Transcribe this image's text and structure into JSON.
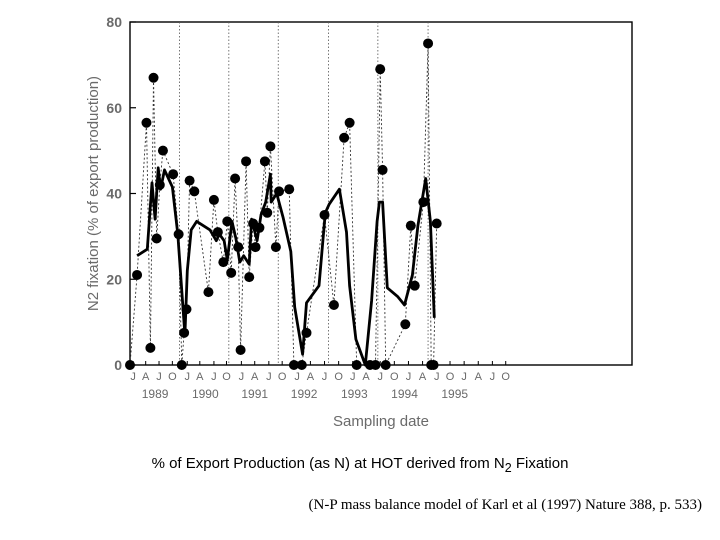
{
  "caption": {
    "prefix": "% of Export Production (as N) at HOT derived from N",
    "subscript": "2",
    "suffix": " Fixation"
  },
  "citation": "(N-P mass balance model of Karl et al (1997) Nature 388, p. 533)",
  "chart_data": {
    "type": "line",
    "ylabel": "N2 fixation (% of export production)",
    "xlabel": "Sampling date",
    "ylim": [
      0,
      80
    ],
    "yticks": [
      0,
      20,
      40,
      60,
      80
    ],
    "grid": false,
    "x_range": [
      1989.5,
      1995.9
    ],
    "month_letters": [
      "J",
      "A",
      "J",
      "O",
      "J",
      "A",
      "J",
      "O",
      "J",
      "A",
      "J",
      "O",
      "J",
      "A",
      "J",
      "O",
      "J",
      "A",
      "J",
      "O",
      "J",
      "A",
      "J",
      "O",
      "J",
      "A",
      "J",
      "O"
    ],
    "month_positions": [
      1989.54,
      1989.7,
      1989.87,
      1990.04,
      1990.23,
      1990.39,
      1990.57,
      1990.73,
      1990.92,
      1991.09,
      1991.27,
      1991.44,
      1991.63,
      1991.8,
      1991.98,
      1992.16,
      1992.34,
      1992.51,
      1992.69,
      1992.87,
      1993.05,
      1993.23,
      1993.41,
      1993.58,
      1993.76,
      1993.94,
      1994.12,
      1994.29
    ],
    "years": [
      {
        "label": "1989",
        "x": 1989.82
      },
      {
        "label": "1990",
        "x": 1990.46
      },
      {
        "label": "1991",
        "x": 1991.09
      },
      {
        "label": "1992",
        "x": 1991.72
      },
      {
        "label": "1993",
        "x": 1992.36
      },
      {
        "label": "1994",
        "x": 1993.0
      },
      {
        "label": "1995",
        "x": 1993.64
      }
    ],
    "year_dividers": [
      1990.13,
      1990.76,
      1991.39,
      1992.03,
      1992.66,
      1993.3
    ],
    "series": [
      {
        "style": "points-dashed",
        "points": [
          [
            1989.5,
            0
          ],
          [
            1989.59,
            21
          ],
          [
            1989.71,
            56.5
          ],
          [
            1989.76,
            4
          ],
          [
            1989.8,
            67
          ],
          [
            1989.84,
            29.5
          ],
          [
            1989.88,
            42
          ],
          [
            1989.92,
            50
          ],
          [
            1990.05,
            44.5
          ],
          [
            1990.12,
            30.5
          ],
          [
            1990.16,
            0
          ],
          [
            1990.19,
            7.5
          ],
          [
            1990.22,
            13
          ],
          [
            1990.26,
            43
          ],
          [
            1990.32,
            40.5
          ],
          [
            1990.5,
            17
          ],
          [
            1990.57,
            38.5
          ],
          [
            1990.62,
            31
          ],
          [
            1990.69,
            24
          ],
          [
            1990.74,
            33.5
          ],
          [
            1990.79,
            21.5
          ],
          [
            1990.84,
            43.5
          ],
          [
            1990.88,
            27.5
          ],
          [
            1990.91,
            3.5
          ],
          [
            1990.98,
            47.5
          ],
          [
            1991.02,
            20.5
          ],
          [
            1991.07,
            33
          ],
          [
            1991.1,
            27.5
          ],
          [
            1991.15,
            32
          ],
          [
            1991.22,
            47.5
          ],
          [
            1991.25,
            35.5
          ],
          [
            1991.29,
            51
          ],
          [
            1991.36,
            27.5
          ],
          [
            1991.4,
            40.5
          ],
          [
            1991.53,
            41
          ],
          [
            1991.59,
            0
          ],
          [
            1991.69,
            0
          ],
          [
            1991.75,
            7.5
          ],
          [
            1991.98,
            35
          ],
          [
            1992.1,
            14
          ],
          [
            1992.23,
            53
          ],
          [
            1992.3,
            56.5
          ],
          [
            1992.39,
            0
          ],
          [
            1992.56,
            0
          ],
          [
            1992.63,
            0
          ],
          [
            1992.69,
            69
          ],
          [
            1992.72,
            45.5
          ],
          [
            1992.76,
            0
          ],
          [
            1993.01,
            9.5
          ],
          [
            1993.08,
            32.5
          ],
          [
            1993.13,
            18.5
          ],
          [
            1993.24,
            38
          ],
          [
            1993.3,
            75
          ],
          [
            1993.34,
            0
          ],
          [
            1993.37,
            0
          ],
          [
            1993.41,
            33
          ]
        ]
      },
      {
        "style": "solid",
        "points": [
          [
            1989.59,
            25.5
          ],
          [
            1989.72,
            27
          ],
          [
            1989.78,
            42.5
          ],
          [
            1989.82,
            34
          ],
          [
            1989.86,
            46
          ],
          [
            1989.89,
            41
          ],
          [
            1989.94,
            45.5
          ],
          [
            1990.04,
            41.5
          ],
          [
            1990.11,
            30.5
          ],
          [
            1990.2,
            7
          ],
          [
            1990.23,
            22
          ],
          [
            1990.28,
            31.5
          ],
          [
            1990.35,
            33.5
          ],
          [
            1990.52,
            31.5
          ],
          [
            1990.6,
            29
          ],
          [
            1990.64,
            30.5
          ],
          [
            1990.7,
            29
          ],
          [
            1990.74,
            24.5
          ],
          [
            1990.8,
            33.5
          ],
          [
            1990.85,
            29.5
          ],
          [
            1990.9,
            24
          ],
          [
            1990.95,
            25.5
          ],
          [
            1991.02,
            23.5
          ],
          [
            1991.05,
            34
          ],
          [
            1991.12,
            29
          ],
          [
            1991.17,
            35
          ],
          [
            1991.23,
            38
          ],
          [
            1991.29,
            44.5
          ],
          [
            1991.3,
            38
          ],
          [
            1991.37,
            40
          ],
          [
            1991.45,
            34.5
          ],
          [
            1991.55,
            26.5
          ],
          [
            1991.6,
            13.5
          ],
          [
            1991.7,
            2.5
          ],
          [
            1991.75,
            14.5
          ],
          [
            1991.91,
            18.5
          ],
          [
            1991.99,
            35.5
          ],
          [
            1992.04,
            37.5
          ],
          [
            1992.17,
            41
          ],
          [
            1992.26,
            31
          ],
          [
            1992.3,
            18.5
          ],
          [
            1992.38,
            6
          ],
          [
            1992.5,
            0
          ],
          [
            1992.58,
            15
          ],
          [
            1992.65,
            33.5
          ],
          [
            1992.68,
            38
          ],
          [
            1992.72,
            38
          ],
          [
            1992.78,
            18
          ],
          [
            1992.91,
            16
          ],
          [
            1993.0,
            14
          ],
          [
            1993.1,
            21
          ],
          [
            1993.17,
            32.5
          ],
          [
            1993.27,
            43.5
          ],
          [
            1993.33,
            33.5
          ],
          [
            1993.38,
            11
          ]
        ]
      }
    ]
  }
}
